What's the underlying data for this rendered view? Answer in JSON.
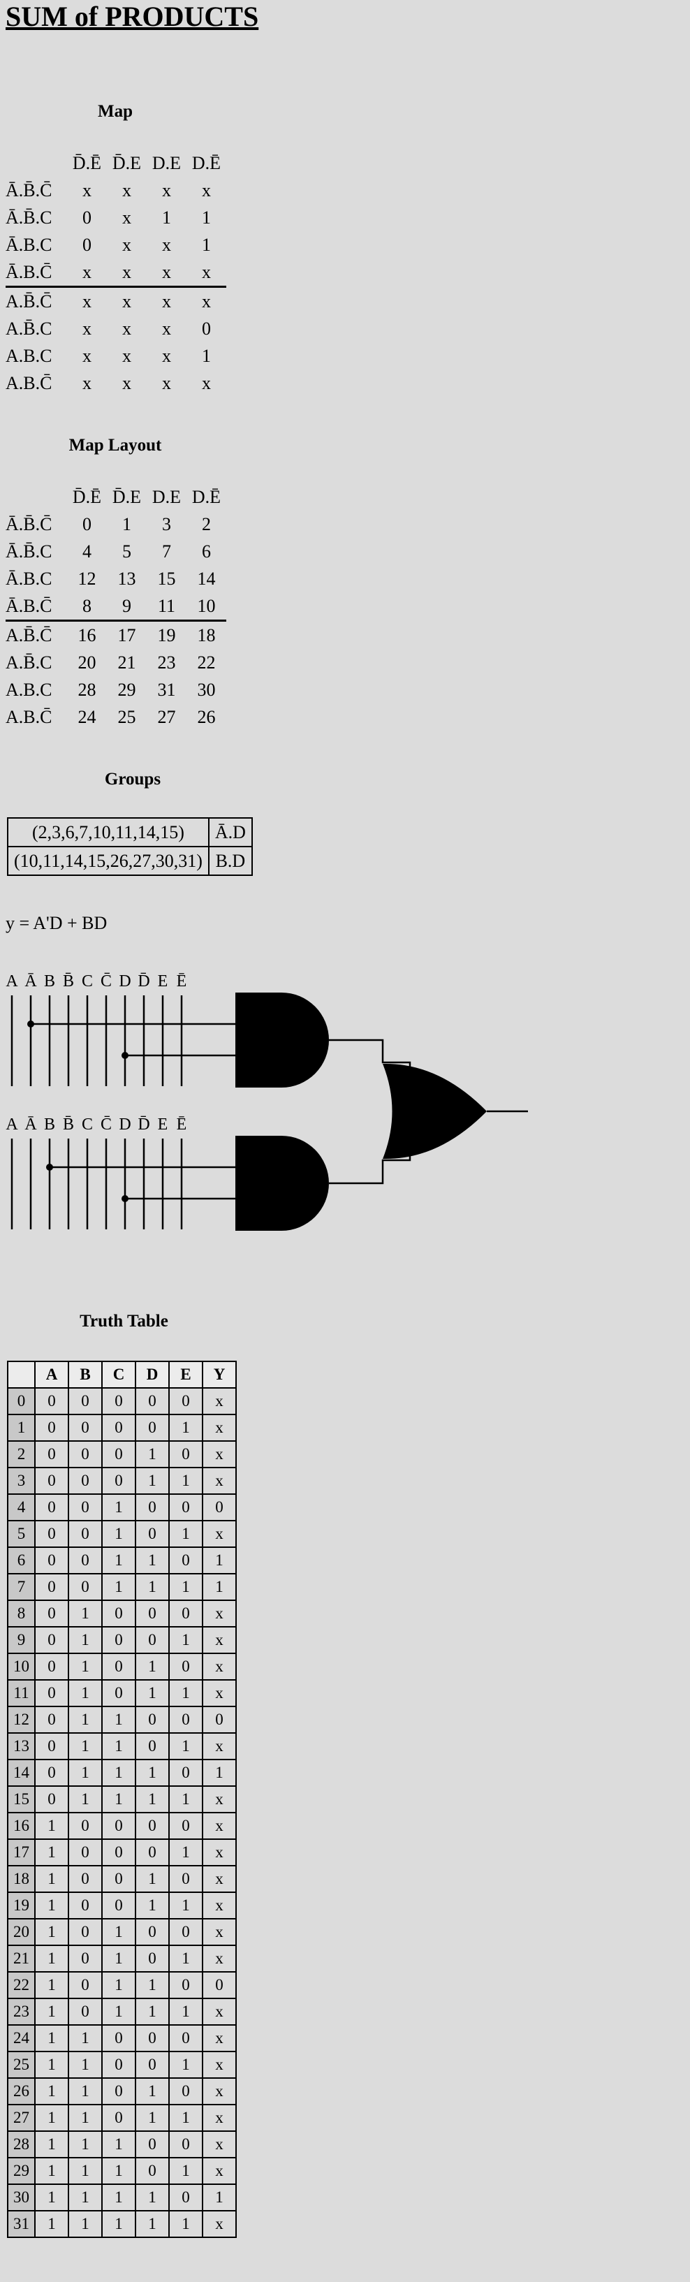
{
  "title": "SUM of PRODUCTS",
  "map": {
    "title": "Map",
    "columns": [
      "D̄.Ē",
      "D̄.E",
      "D.E",
      "D.Ē"
    ],
    "rows": [
      {
        "label": "Ā.B̄.C̄",
        "cells": [
          "x",
          "x",
          "x",
          "x"
        ]
      },
      {
        "label": "Ā.B̄.C",
        "cells": [
          "0",
          "x",
          "1",
          "1"
        ]
      },
      {
        "label": "Ā.B.C",
        "cells": [
          "0",
          "x",
          "x",
          "1"
        ]
      },
      {
        "label": "Ā.B.C̄",
        "cells": [
          "x",
          "x",
          "x",
          "x"
        ]
      },
      {
        "label": "A.B̄.C̄",
        "cells": [
          "x",
          "x",
          "x",
          "x"
        ]
      },
      {
        "label": "A.B̄.C",
        "cells": [
          "x",
          "x",
          "x",
          "0"
        ]
      },
      {
        "label": "A.B.C",
        "cells": [
          "x",
          "x",
          "x",
          "1"
        ]
      },
      {
        "label": "A.B.C̄",
        "cells": [
          "x",
          "x",
          "x",
          "x"
        ]
      }
    ]
  },
  "map_layout": {
    "title": "Map Layout",
    "columns": [
      "D̄.Ē",
      "D̄.E",
      "D.E",
      "D.Ē"
    ],
    "rows": [
      {
        "label": "Ā.B̄.C̄",
        "cells": [
          "0",
          "1",
          "3",
          "2"
        ]
      },
      {
        "label": "Ā.B̄.C",
        "cells": [
          "4",
          "5",
          "7",
          "6"
        ]
      },
      {
        "label": "Ā.B.C",
        "cells": [
          "12",
          "13",
          "15",
          "14"
        ]
      },
      {
        "label": "Ā.B.C̄",
        "cells": [
          "8",
          "9",
          "11",
          "10"
        ]
      },
      {
        "label": "A.B̄.C̄",
        "cells": [
          "16",
          "17",
          "19",
          "18"
        ]
      },
      {
        "label": "A.B̄.C",
        "cells": [
          "20",
          "21",
          "23",
          "22"
        ]
      },
      {
        "label": "A.B.C",
        "cells": [
          "28",
          "29",
          "31",
          "30"
        ]
      },
      {
        "label": "A.B.C̄",
        "cells": [
          "24",
          "25",
          "27",
          "26"
        ]
      }
    ]
  },
  "groups": {
    "title": "Groups",
    "rows": [
      {
        "minterms": "(2,3,6,7,10,11,14,15)",
        "term": "Ā.D"
      },
      {
        "minterms": "(10,11,14,15,26,27,30,31)",
        "term": "B.D"
      }
    ]
  },
  "equation": "y = A'D + BD",
  "circuit": {
    "input_labels": [
      "A",
      "Ā",
      "B",
      "B̄",
      "C",
      "C̄",
      "D",
      "D̄",
      "E",
      "Ē"
    ]
  },
  "truth_table": {
    "title": "Truth Table",
    "headers": [
      "",
      "A",
      "B",
      "C",
      "D",
      "E",
      "Y"
    ],
    "rows": [
      [
        "0",
        "0",
        "0",
        "0",
        "0",
        "0",
        "x"
      ],
      [
        "1",
        "0",
        "0",
        "0",
        "0",
        "1",
        "x"
      ],
      [
        "2",
        "0",
        "0",
        "0",
        "1",
        "0",
        "x"
      ],
      [
        "3",
        "0",
        "0",
        "0",
        "1",
        "1",
        "x"
      ],
      [
        "4",
        "0",
        "0",
        "1",
        "0",
        "0",
        "0"
      ],
      [
        "5",
        "0",
        "0",
        "1",
        "0",
        "1",
        "x"
      ],
      [
        "6",
        "0",
        "0",
        "1",
        "1",
        "0",
        "1"
      ],
      [
        "7",
        "0",
        "0",
        "1",
        "1",
        "1",
        "1"
      ],
      [
        "8",
        "0",
        "1",
        "0",
        "0",
        "0",
        "x"
      ],
      [
        "9",
        "0",
        "1",
        "0",
        "0",
        "1",
        "x"
      ],
      [
        "10",
        "0",
        "1",
        "0",
        "1",
        "0",
        "x"
      ],
      [
        "11",
        "0",
        "1",
        "0",
        "1",
        "1",
        "x"
      ],
      [
        "12",
        "0",
        "1",
        "1",
        "0",
        "0",
        "0"
      ],
      [
        "13",
        "0",
        "1",
        "1",
        "0",
        "1",
        "x"
      ],
      [
        "14",
        "0",
        "1",
        "1",
        "1",
        "0",
        "1"
      ],
      [
        "15",
        "0",
        "1",
        "1",
        "1",
        "1",
        "x"
      ],
      [
        "16",
        "1",
        "0",
        "0",
        "0",
        "0",
        "x"
      ],
      [
        "17",
        "1",
        "0",
        "0",
        "0",
        "1",
        "x"
      ],
      [
        "18",
        "1",
        "0",
        "0",
        "1",
        "0",
        "x"
      ],
      [
        "19",
        "1",
        "0",
        "0",
        "1",
        "1",
        "x"
      ],
      [
        "20",
        "1",
        "0",
        "1",
        "0",
        "0",
        "x"
      ],
      [
        "21",
        "1",
        "0",
        "1",
        "0",
        "1",
        "x"
      ],
      [
        "22",
        "1",
        "0",
        "1",
        "1",
        "0",
        "0"
      ],
      [
        "23",
        "1",
        "0",
        "1",
        "1",
        "1",
        "x"
      ],
      [
        "24",
        "1",
        "1",
        "0",
        "0",
        "0",
        "x"
      ],
      [
        "25",
        "1",
        "1",
        "0",
        "0",
        "1",
        "x"
      ],
      [
        "26",
        "1",
        "1",
        "0",
        "1",
        "0",
        "x"
      ],
      [
        "27",
        "1",
        "1",
        "0",
        "1",
        "1",
        "x"
      ],
      [
        "28",
        "1",
        "1",
        "1",
        "0",
        "0",
        "x"
      ],
      [
        "29",
        "1",
        "1",
        "1",
        "0",
        "1",
        "x"
      ],
      [
        "30",
        "1",
        "1",
        "1",
        "1",
        "0",
        "1"
      ],
      [
        "31",
        "1",
        "1",
        "1",
        "1",
        "1",
        "x"
      ]
    ]
  }
}
